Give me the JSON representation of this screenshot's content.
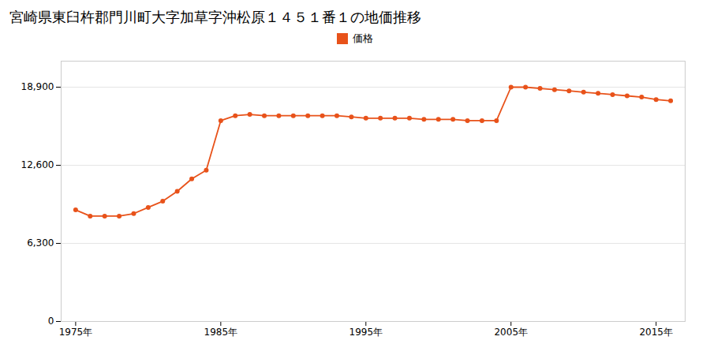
{
  "chart_data": {
    "type": "line",
    "title": "宮崎県東臼杵郡門川町大字加草字沖松原１４５１番１の地価推移",
    "x": [
      1975,
      1976,
      1977,
      1978,
      1979,
      1980,
      1981,
      1982,
      1983,
      1984,
      1985,
      1986,
      1987,
      1988,
      1989,
      1990,
      1991,
      1992,
      1993,
      1994,
      1995,
      1996,
      1997,
      1998,
      1999,
      2000,
      2001,
      2002,
      2003,
      2004,
      2005,
      2006,
      2007,
      2008,
      2009,
      2010,
      2011,
      2012,
      2013,
      2014,
      2015,
      2016
    ],
    "series": [
      {
        "name": "価格",
        "color": "#E8521A",
        "marker": "circle",
        "values": [
          9000,
          8500,
          8500,
          8500,
          8700,
          9200,
          9700,
          10500,
          11500,
          12200,
          16200,
          16600,
          16700,
          16600,
          16600,
          16600,
          16600,
          16600,
          16600,
          16500,
          16400,
          16400,
          16400,
          16400,
          16300,
          16300,
          16300,
          16200,
          16200,
          16200,
          18900,
          18900,
          18800,
          18700,
          18600,
          18500,
          18400,
          18300,
          18200,
          18100,
          17900,
          17800
        ]
      }
    ],
    "xlim": [
      1974,
      2017
    ],
    "xticks": [
      {
        "value": 1975,
        "label": "1975年"
      },
      {
        "value": 1985,
        "label": "1985年"
      },
      {
        "value": 1995,
        "label": "1995年"
      },
      {
        "value": 2005,
        "label": "2005年"
      },
      {
        "value": 2015,
        "label": "2015年"
      }
    ],
    "ylim": [
      0,
      21000
    ],
    "yticks": [
      0,
      {
        "value": 6300,
        "label": "6,300"
      },
      {
        "value": 12600,
        "label": "12,600"
      },
      {
        "value": 18900,
        "label": "18,900"
      }
    ],
    "grid": true,
    "legend": "top"
  }
}
